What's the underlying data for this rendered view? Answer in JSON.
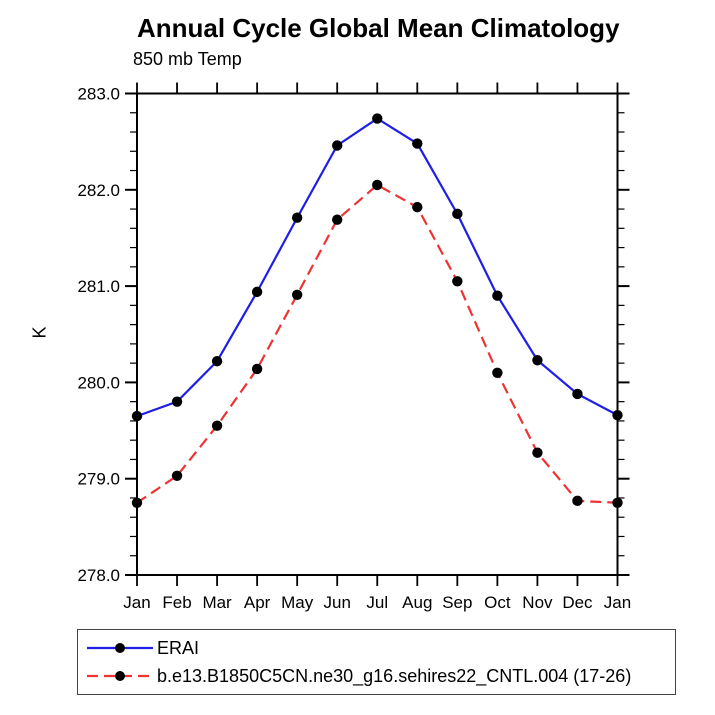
{
  "title": "Annual Cycle Global Mean Climatology",
  "subtitle": "850 mb Temp",
  "y_axis_title": "K",
  "legend": {
    "items": [
      {
        "label": "ERAI",
        "color": "#1e1ee6",
        "line_style": "solid",
        "marker": "filled-circle",
        "marker_color": "#000000"
      },
      {
        "label": "b.e13.B1850C5CN.ne30_g16.sehires22_CNTL.004 (17-26)",
        "color": "#ee3333",
        "line_style": "dashed",
        "marker": "filled-circle",
        "marker_color": "#000000"
      }
    ]
  },
  "chart_data": {
    "type": "line",
    "title": "Annual Cycle Global Mean Climatology",
    "subtitle": "850 mb Temp",
    "xlabel": "",
    "ylabel": "K",
    "x_categories": [
      "Jan",
      "Feb",
      "Mar",
      "Apr",
      "May",
      "Jun",
      "Jul",
      "Aug",
      "Sep",
      "Oct",
      "Nov",
      "Dec",
      "Jan"
    ],
    "series": [
      {
        "name": "ERAI",
        "color": "#1e1ee6",
        "line_style": "solid",
        "marker": "filled-circle",
        "marker_color": "#000000",
        "values": [
          279.65,
          279.8,
          280.22,
          280.94,
          281.71,
          282.46,
          282.74,
          282.48,
          281.75,
          280.9,
          280.23,
          279.88,
          279.66
        ]
      },
      {
        "name": "b.e13.B1850C5CN.ne30_g16.sehires22_CNTL.004 (17-26)",
        "color": "#ee3333",
        "line_style": "dashed",
        "marker": "filled-circle",
        "marker_color": "#000000",
        "values": [
          278.75,
          279.03,
          279.55,
          280.14,
          280.91,
          281.69,
          282.05,
          281.82,
          281.05,
          280.1,
          279.27,
          278.77,
          278.75
        ]
      }
    ],
    "ylim": [
      278.0,
      283.0
    ],
    "ytick_interval": 1.0,
    "yminor_interval": 0.2,
    "ytick_labels": [
      "278.0",
      "279.0",
      "280.0",
      "281.0",
      "282.0",
      "283.0"
    ],
    "grid": false,
    "legend_position": "bottom-left",
    "axis_color": "#000000"
  }
}
